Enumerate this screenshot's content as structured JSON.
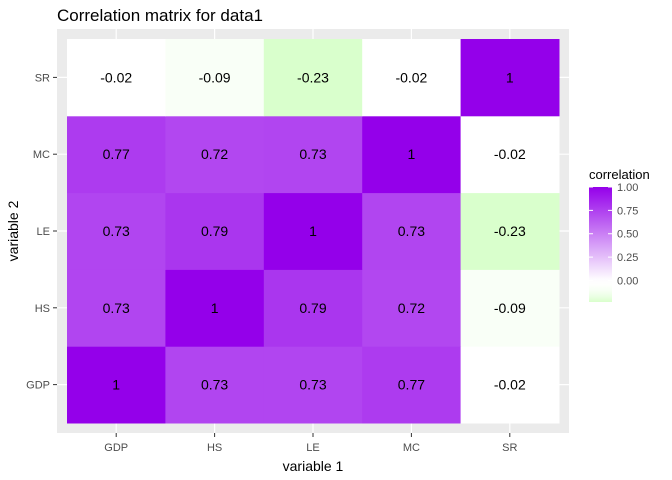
{
  "chart_data": {
    "type": "heatmap",
    "title": "Correlation matrix for data1",
    "xlabel": "variable 1",
    "ylabel": "variable 2",
    "x_categories": [
      "GDP",
      "HS",
      "LE",
      "MC",
      "SR"
    ],
    "y_categories": [
      "GDP",
      "HS",
      "LE",
      "MC",
      "SR"
    ],
    "values": [
      [
        1,
        0.73,
        0.73,
        0.77,
        -0.02
      ],
      [
        0.73,
        1,
        0.79,
        0.72,
        -0.09
      ],
      [
        0.73,
        0.79,
        1,
        0.73,
        -0.23
      ],
      [
        0.77,
        0.72,
        0.73,
        1,
        -0.02
      ],
      [
        -0.02,
        -0.09,
        -0.23,
        -0.02,
        1
      ]
    ],
    "labels": [
      [
        "1",
        "0.73",
        "0.73",
        "0.77",
        "-0.02"
      ],
      [
        "0.73",
        "1",
        "0.79",
        "0.72",
        "-0.09"
      ],
      [
        "0.73",
        "0.79",
        "1",
        "0.73",
        "-0.23"
      ],
      [
        "0.77",
        "0.72",
        "0.73",
        "1",
        "-0.02"
      ],
      [
        "-0.02",
        "-0.09",
        "-0.23",
        "-0.02",
        "1"
      ]
    ],
    "legend": {
      "title": "correlation",
      "placement": "right",
      "ticks": [
        1.0,
        0.75,
        0.5,
        0.25,
        0.0
      ],
      "tick_labels": [
        "1.00",
        "0.75",
        "0.50",
        "0.25",
        "0.00"
      ],
      "range": [
        -0.23,
        1.0
      ]
    },
    "colors": {
      "low": "#d9ffcc",
      "mid": "#ffffff",
      "high": "#9400ea",
      "panel_background": "#ebebeb",
      "grid": "#ffffff"
    }
  }
}
